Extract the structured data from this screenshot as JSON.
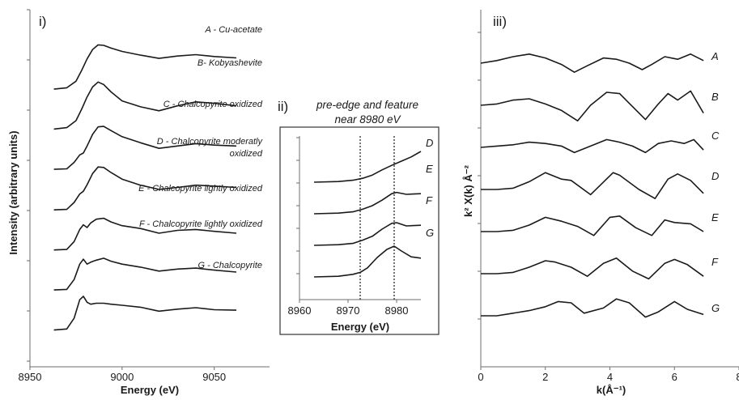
{
  "chart_data": [
    {
      "type": "line",
      "panel_label": "i)",
      "xlabel": "Energy (eV)",
      "ylabel": "Intensity (arbitrary units)",
      "xlim": [
        8950,
        9080
      ],
      "xticks": [
        "8950",
        "9000",
        "9050"
      ],
      "y_tick_count": 8,
      "series": [
        {
          "name": "A - Cu-acetate",
          "offset": 6,
          "scale": 0.8,
          "x": [
            8963,
            8970,
            8975,
            8978,
            8981,
            8984,
            8987,
            8990,
            8994,
            9000,
            9010,
            9020,
            9030,
            9040,
            9050,
            9062
          ],
          "y": [
            0.05,
            0.08,
            0.22,
            0.45,
            0.7,
            0.9,
            1.0,
            0.99,
            0.93,
            0.86,
            0.78,
            0.71,
            0.76,
            0.79,
            0.75,
            0.72
          ]
        },
        {
          "name": "B- Kobyashevite",
          "offset": 5,
          "scale": 0.85,
          "x": [
            8963,
            8970,
            8975,
            8978,
            8981,
            8984,
            8987,
            8990,
            8994,
            9000,
            9010,
            9020,
            9030,
            9040,
            9050,
            9062
          ],
          "y": [
            0.05,
            0.08,
            0.22,
            0.45,
            0.7,
            0.9,
            1.0,
            0.95,
            0.8,
            0.62,
            0.5,
            0.42,
            0.52,
            0.6,
            0.57,
            0.52
          ]
        },
        {
          "name": "C - Chalcopyrite oxidized",
          "offset": 4,
          "scale": 0.8,
          "x": [
            8963,
            8970,
            8974,
            8977,
            8979,
            8981,
            8984,
            8987,
            8990,
            8994,
            9000,
            9010,
            9020,
            9030,
            9040,
            9050,
            9062
          ],
          "y": [
            0.05,
            0.06,
            0.2,
            0.36,
            0.4,
            0.55,
            0.8,
            0.96,
            0.97,
            0.88,
            0.75,
            0.62,
            0.5,
            0.55,
            0.6,
            0.57,
            0.55
          ]
        },
        {
          "name": "D - Chalcopyrite moderatly",
          "name_line2": "oxidized",
          "offset": 3,
          "scale": 0.8,
          "x": [
            8963,
            8970,
            8974,
            8977,
            8979,
            8981,
            8984,
            8987,
            8990,
            8994,
            9000,
            9010,
            9020,
            9030,
            9040,
            9050,
            9062
          ],
          "y": [
            0.04,
            0.05,
            0.2,
            0.38,
            0.44,
            0.58,
            0.82,
            0.96,
            0.95,
            0.84,
            0.7,
            0.57,
            0.48,
            0.52,
            0.57,
            0.55,
            0.52
          ]
        },
        {
          "name": "E - Chalcopyrite lightly oxidized",
          "offset": 2,
          "scale": 0.8,
          "x": [
            8963,
            8970,
            8974,
            8977,
            8979,
            8981,
            8983,
            8986,
            8990,
            8994,
            9000,
            9010,
            9020,
            9030,
            9040,
            9050,
            9062
          ],
          "y": [
            0.04,
            0.05,
            0.22,
            0.48,
            0.58,
            0.52,
            0.62,
            0.7,
            0.72,
            0.64,
            0.56,
            0.5,
            0.4,
            0.46,
            0.48,
            0.44,
            0.4
          ]
        },
        {
          "name": "F - Chalcopyrite lightly oxidized",
          "offset": 1,
          "scale": 0.85,
          "x": [
            8963,
            8970,
            8974,
            8977,
            8979,
            8981,
            8983,
            8986,
            8990,
            8994,
            9000,
            9010,
            9020,
            9030,
            9040,
            9050,
            9062
          ],
          "y": [
            0.04,
            0.05,
            0.25,
            0.56,
            0.66,
            0.56,
            0.6,
            0.64,
            0.68,
            0.62,
            0.56,
            0.5,
            0.42,
            0.46,
            0.48,
            0.44,
            0.4
          ]
        },
        {
          "name": "G - Chalcopyrite",
          "offset": 0,
          "scale": 0.85,
          "x": [
            8963,
            8970,
            8974,
            8977,
            8979,
            8981,
            8983,
            8986,
            8990,
            8994,
            9000,
            9010,
            9020,
            9030,
            9040,
            9050,
            9062
          ],
          "y": [
            0.04,
            0.06,
            0.28,
            0.65,
            0.72,
            0.6,
            0.56,
            0.58,
            0.58,
            0.56,
            0.54,
            0.5,
            0.42,
            0.46,
            0.49,
            0.45,
            0.44
          ]
        }
      ]
    },
    {
      "type": "line",
      "panel_label": "ii)",
      "title": "pre-edge and feature",
      "title_line2": "near 8980 eV",
      "xlabel": "Energy (eV)",
      "xlim": [
        8960,
        8985
      ],
      "xticks": [
        "8960",
        "8970",
        "8980"
      ],
      "reference_lines_x": [
        8972.5,
        8979.5
      ],
      "y_tick_count": 7,
      "series": [
        {
          "name": "D",
          "offset": 3,
          "x": [
            8963,
            8968,
            8971,
            8973,
            8975,
            8977,
            8979,
            8981,
            8983,
            8985
          ],
          "y": [
            0.0,
            0.02,
            0.06,
            0.12,
            0.22,
            0.38,
            0.52,
            0.65,
            0.78,
            0.95
          ]
        },
        {
          "name": "E",
          "offset": 2,
          "x": [
            8963,
            8968,
            8971,
            8973,
            8975,
            8977,
            8979,
            8980,
            8982,
            8985
          ],
          "y": [
            0.0,
            0.02,
            0.06,
            0.14,
            0.25,
            0.42,
            0.62,
            0.66,
            0.6,
            0.62
          ]
        },
        {
          "name": "F",
          "offset": 1,
          "x": [
            8963,
            8968,
            8971,
            8973,
            8975,
            8977,
            8979,
            8980,
            8982,
            8985
          ],
          "y": [
            0.0,
            0.02,
            0.06,
            0.16,
            0.28,
            0.5,
            0.68,
            0.7,
            0.6,
            0.62
          ]
        },
        {
          "name": "G",
          "offset": 0,
          "x": [
            8963,
            8968,
            8971,
            8972.5,
            8974,
            8976,
            8978,
            8979.5,
            8981,
            8983,
            8985
          ],
          "y": [
            0.0,
            0.02,
            0.08,
            0.14,
            0.28,
            0.6,
            0.85,
            0.95,
            0.8,
            0.62,
            0.58
          ]
        }
      ]
    },
    {
      "type": "line",
      "panel_label": "iii)",
      "xlabel": "k(Å⁻¹)",
      "ylabel": "k² X(k) Å⁻²",
      "xlim": [
        0,
        8
      ],
      "xticks": [
        "0",
        "2",
        "4",
        "6",
        "8"
      ],
      "y_tick_count": 7,
      "series": [
        {
          "name": "A",
          "offset": 6,
          "x": [
            0.0,
            0.5,
            1.0,
            1.5,
            2.0,
            2.5,
            2.9,
            3.3,
            3.8,
            4.2,
            4.6,
            5.0,
            5.3,
            5.7,
            6.1,
            6.5,
            6.9
          ],
          "y": [
            0.0,
            0.1,
            0.25,
            0.35,
            0.2,
            -0.05,
            -0.35,
            -0.1,
            0.2,
            0.15,
            0.0,
            -0.25,
            -0.05,
            0.25,
            0.15,
            0.35,
            0.1
          ]
        },
        {
          "name": "B",
          "offset": 5,
          "x": [
            0.0,
            0.5,
            1.0,
            1.5,
            2.0,
            2.5,
            3.0,
            3.4,
            3.9,
            4.3,
            4.7,
            5.1,
            5.5,
            5.8,
            6.1,
            6.5,
            6.9
          ],
          "y": [
            0.0,
            0.05,
            0.2,
            0.25,
            0.05,
            -0.2,
            -0.6,
            0.0,
            0.5,
            0.45,
            -0.05,
            -0.55,
            0.05,
            0.45,
            0.2,
            0.55,
            -0.3
          ]
        },
        {
          "name": "C",
          "offset": 4,
          "x": [
            0.0,
            0.5,
            1.0,
            1.5,
            2.0,
            2.5,
            2.9,
            3.4,
            3.9,
            4.3,
            4.7,
            5.1,
            5.5,
            5.9,
            6.3,
            6.6,
            6.9
          ],
          "y": [
            0.0,
            0.05,
            0.1,
            0.2,
            0.15,
            0.05,
            -0.2,
            0.05,
            0.3,
            0.2,
            0.05,
            -0.2,
            0.15,
            0.25,
            0.15,
            0.3,
            -0.1
          ]
        },
        {
          "name": "D",
          "offset": 3,
          "x": [
            0.0,
            0.5,
            1.0,
            1.5,
            2.0,
            2.5,
            2.8,
            3.4,
            4.1,
            4.3,
            4.9,
            5.4,
            5.8,
            6.1,
            6.5,
            6.9
          ],
          "y": [
            0.0,
            0.0,
            0.05,
            0.3,
            0.65,
            0.4,
            0.35,
            -0.2,
            0.65,
            0.55,
            0.0,
            -0.35,
            0.4,
            0.6,
            0.35,
            -0.15
          ]
        },
        {
          "name": "E",
          "offset": 2,
          "x": [
            0.0,
            0.5,
            1.0,
            1.5,
            2.0,
            2.5,
            3.0,
            3.5,
            4.0,
            4.3,
            4.8,
            5.3,
            5.7,
            6.0,
            6.5,
            6.9
          ],
          "y": [
            0.0,
            0.0,
            0.05,
            0.25,
            0.55,
            0.4,
            0.2,
            -0.15,
            0.55,
            0.6,
            0.15,
            -0.15,
            0.45,
            0.35,
            0.3,
            0.0
          ]
        },
        {
          "name": "F",
          "offset": 1,
          "x": [
            0.0,
            0.5,
            1.0,
            1.5,
            2.0,
            2.3,
            2.8,
            3.3,
            3.8,
            4.2,
            4.7,
            5.2,
            5.7,
            6.0,
            6.4,
            6.9
          ],
          "y": [
            0.0,
            0.0,
            0.05,
            0.25,
            0.5,
            0.45,
            0.25,
            -0.1,
            0.4,
            0.6,
            0.1,
            -0.2,
            0.4,
            0.55,
            0.35,
            -0.1
          ]
        },
        {
          "name": "G",
          "offset": 0,
          "x": [
            0.0,
            0.5,
            1.0,
            1.5,
            2.0,
            2.4,
            2.8,
            3.2,
            3.8,
            4.2,
            4.6,
            5.1,
            5.5,
            6.0,
            6.4,
            6.9
          ],
          "y": [
            0.0,
            0.0,
            0.1,
            0.2,
            0.35,
            0.55,
            0.5,
            0.1,
            0.3,
            0.65,
            0.5,
            -0.05,
            0.15,
            0.55,
            0.25,
            0.05
          ]
        }
      ]
    }
  ]
}
